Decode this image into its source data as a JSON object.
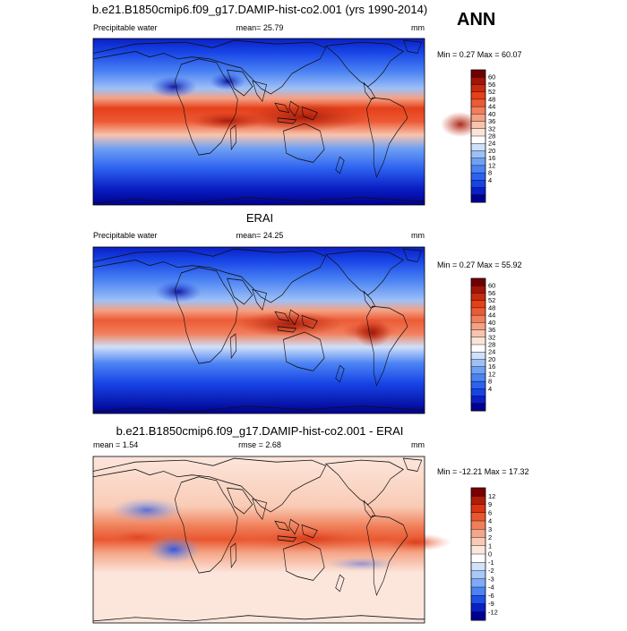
{
  "season_label": "ANN",
  "colors": {
    "abs": [
      "#000090",
      "#0a1fc4",
      "#1744e6",
      "#2d62f0",
      "#4b83f3",
      "#6fa0f4",
      "#9dc0f7",
      "#cfe0fa",
      "#ffffff",
      "#fbe3d8",
      "#f8c4ae",
      "#f5a184",
      "#f27f5c",
      "#ec5b36",
      "#e5401a",
      "#c82a0d",
      "#a01506",
      "#700000"
    ],
    "diff": [
      "#000090",
      "#0a1fc4",
      "#1f4fe6",
      "#4b83f3",
      "#7eaaf6",
      "#a9c8f8",
      "#d2e2fb",
      "#ffffff",
      "#fce6dc",
      "#f9cbb6",
      "#f5a688",
      "#f07f59",
      "#e9562f",
      "#d83513",
      "#b01d07",
      "#7a0000"
    ]
  },
  "chart_data": [
    {
      "type": "heatmap",
      "title": "b.e21.B1850cmip6.f09_g17.DAMIP-hist-co2.001 (yrs 1990-2014)",
      "left_label": "Precipitable water",
      "center_label": "mean=  25.79",
      "units": "mm",
      "minmax_label": "Min =   0.27 Max =  60.07",
      "colorbar_levels": [
        "60",
        "56",
        "52",
        "48",
        "44",
        "40",
        "36",
        "32",
        "28",
        "24",
        "20",
        "16",
        "12",
        "8",
        "4"
      ],
      "field": {
        "mean": 25.79,
        "min": 0.27,
        "max": 60.07
      }
    },
    {
      "type": "heatmap",
      "title": "ERAI",
      "left_label": "Precipitable water",
      "center_label": "mean=  24.25",
      "units": "mm",
      "minmax_label": "Min =   0.27 Max =  55.92",
      "colorbar_levels": [
        "60",
        "56",
        "52",
        "48",
        "44",
        "40",
        "36",
        "32",
        "28",
        "24",
        "20",
        "16",
        "12",
        "8",
        "4"
      ],
      "field": {
        "mean": 24.25,
        "min": 0.27,
        "max": 55.92
      }
    },
    {
      "type": "heatmap",
      "title": "b.e21.B1850cmip6.f09_g17.DAMIP-hist-co2.001 - ERAI",
      "left_label": "mean =    1.54",
      "center_label": "rmse =    2.68",
      "units": "mm",
      "minmax_label": "Min = -12.21 Max =  17.32",
      "colorbar_levels": [
        "12",
        "9",
        "6",
        "4",
        "3",
        "2",
        "1",
        "0",
        "-1",
        "-2",
        "-3",
        "-4",
        "-6",
        "-9",
        "-12"
      ],
      "field": {
        "mean": 1.54,
        "rmse": 2.68,
        "min": -12.21,
        "max": 17.32
      }
    }
  ]
}
